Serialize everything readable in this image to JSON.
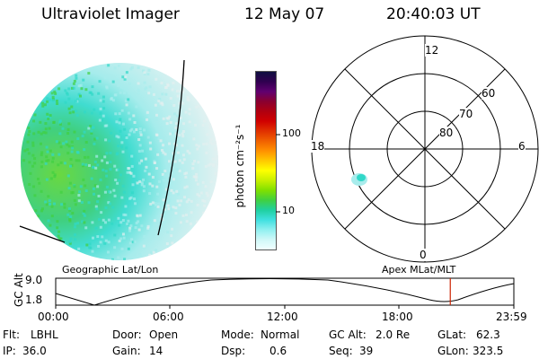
{
  "header": {
    "instrument": "Ultraviolet Imager",
    "date": "12 May 07",
    "time": "20:40:03 UT"
  },
  "colorbar": {
    "unit_label": "photon cm⁻²s⁻¹",
    "ticks": [
      "100",
      "10"
    ],
    "colors": [
      "#101040",
      "#300050",
      "#600070",
      "#8a0030",
      "#b00010",
      "#d00000",
      "#e03000",
      "#f06000",
      "#ff9000",
      "#ffc800",
      "#ffff00",
      "#c8f000",
      "#80e000",
      "#40d040",
      "#20d0a0",
      "#40e0e0",
      "#90f0f0",
      "#d0f8f8",
      "#f0ffff"
    ]
  },
  "polar": {
    "mlt_labels": {
      "top": "12",
      "left": "18",
      "right": "6",
      "bottom": "0"
    },
    "lat_labels": [
      "60",
      "70",
      "80"
    ]
  },
  "altitude_plot": {
    "ylabel": "GC Alt",
    "yticks": [
      "9.0",
      "1.8"
    ],
    "left_title": "Geographic Lat/Lon",
    "right_title": "Apex  MLat/MLT",
    "xticks": [
      "00:00",
      "06:00",
      "12:00",
      "18:00",
      "23:59"
    ],
    "current_time_marker_hours": 20.67
  },
  "info": {
    "flt_label": "Flt:",
    "flt": "LBHL",
    "ip_label": "IP:",
    "ip": "36.0",
    "door_label": "Door:",
    "door": "Open",
    "gain_label": "Gain:",
    "gain": "14",
    "mode_label": "Mode:",
    "mode": "Normal",
    "dsp_label": "Dsp:",
    "dsp": "0.6",
    "gcalt_label": "GC Alt:",
    "gcalt": "2.0 Re",
    "seq_label": "Seq:",
    "seq": "39",
    "glat_label": "GLat:",
    "glat": "62.3",
    "glon_label": "GLon:",
    "glon": "323.5"
  },
  "colors": {
    "marker": "#cc2200",
    "aurora_bright": "#40d040",
    "aurora_mid": "#30d8c8",
    "aurora_faint": "#a8ecec",
    "background_faint": "#e2f0f0"
  }
}
